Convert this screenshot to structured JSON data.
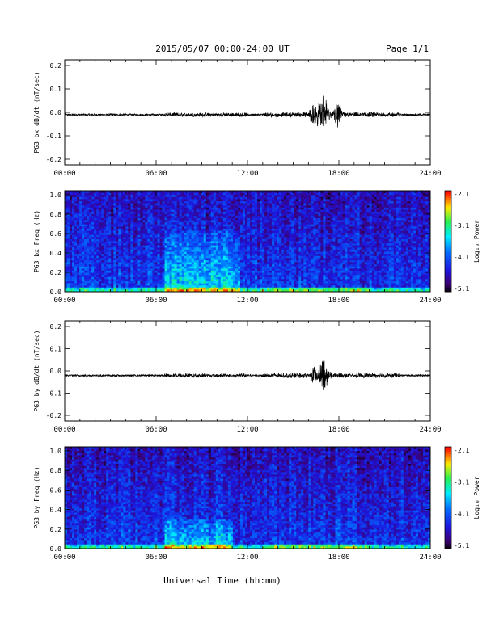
{
  "header": {
    "title": "2015/05/07  00:00-24:00 UT",
    "page": "Page 1/1"
  },
  "footer": {
    "xlabel": "Universal Time (hh:mm)"
  },
  "colorbar": {
    "label": "Log₁₀ Power",
    "ticks": [
      "-2.1",
      "-3.1",
      "-4.1",
      "-5.1"
    ],
    "range": [
      -5.1,
      -2.1
    ]
  },
  "chart_data": [
    {
      "type": "line",
      "ylabel": "PG3 bx dB/dt (nT/sec)",
      "xticks": [
        "00:00",
        "06:00",
        "12:00",
        "18:00",
        "24:00"
      ],
      "yticks": [
        "0.2",
        "0.1",
        "0.0",
        "-0.1",
        "-0.2"
      ],
      "xlim": [
        0,
        24
      ],
      "ylim": [
        -0.22,
        0.22
      ],
      "baseline": -0.01,
      "bursts": [
        {
          "hour": 16.3,
          "amp": 0.04
        },
        {
          "hour": 16.6,
          "amp": 0.05
        },
        {
          "hour": 16.95,
          "amp": 0.07
        },
        {
          "hour": 17.2,
          "amp": 0.04
        },
        {
          "hour": 17.9,
          "amp": 0.06
        }
      ]
    },
    {
      "type": "heatmap",
      "ylabel": "PG3 bx Freq (Hz)",
      "xticks": [
        "00:00",
        "06:00",
        "12:00",
        "18:00",
        "24:00"
      ],
      "yticks": [
        "1.0",
        "0.8",
        "0.6",
        "0.4",
        "0.2",
        "0.0"
      ],
      "xlim": [
        0,
        24
      ],
      "ylim": [
        0,
        1.0
      ],
      "zlim": [
        -5.1,
        -2.1
      ],
      "high_power_band": {
        "hours": [
          6.5,
          11.5
        ],
        "freq_max": 0.6
      }
    },
    {
      "type": "line",
      "ylabel": "PG3 by dB/dt (nT/sec)",
      "xticks": [
        "00:00",
        "06:00",
        "12:00",
        "18:00",
        "24:00"
      ],
      "yticks": [
        "0.2",
        "0.1",
        "0.0",
        "-0.1",
        "-0.2"
      ],
      "xlim": [
        0,
        24
      ],
      "ylim": [
        -0.22,
        0.22
      ],
      "baseline": -0.02,
      "bursts": [
        {
          "hour": 16.4,
          "amp": 0.04
        },
        {
          "hour": 16.95,
          "amp": 0.08
        },
        {
          "hour": 17.3,
          "amp": 0.03
        }
      ]
    },
    {
      "type": "heatmap",
      "ylabel": "PG3 by Freq (Hz)",
      "xticks": [
        "00:00",
        "06:00",
        "12:00",
        "18:00",
        "24:00"
      ],
      "yticks": [
        "1.0",
        "0.8",
        "0.6",
        "0.4",
        "0.2",
        "0.0"
      ],
      "xlim": [
        0,
        24
      ],
      "ylim": [
        0,
        1.0
      ],
      "zlim": [
        -5.1,
        -2.1
      ],
      "high_power_band": {
        "hours": [
          6.5,
          11.0
        ],
        "freq_max": 0.3
      }
    }
  ]
}
